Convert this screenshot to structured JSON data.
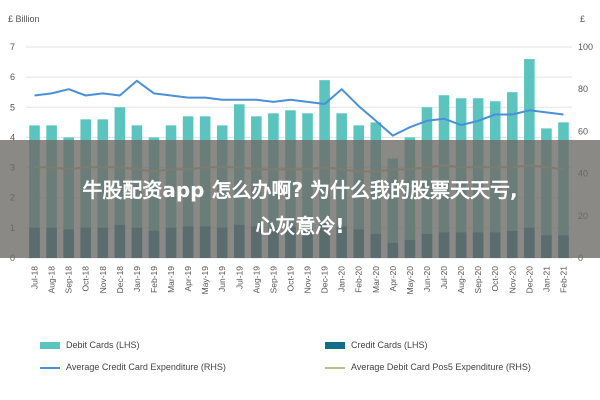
{
  "chart_data": {
    "type": "bar",
    "units_left": "£ Billion",
    "units_right": "£",
    "categories": [
      "Jul-18",
      "Aug-18",
      "Sep-18",
      "Oct-18",
      "Nov-18",
      "Dec-18",
      "Jan-19",
      "Feb-19",
      "Mar-19",
      "Apr-19",
      "May-19",
      "Jun-19",
      "Jul-19",
      "Aug-19",
      "Sep-19",
      "Oct-19",
      "Nov-19",
      "Dec-19",
      "Jan-20",
      "Feb-20",
      "Mar-20",
      "Apr-20",
      "May-20",
      "Jun-20",
      "Jul-20",
      "Aug-20",
      "Sep-20",
      "Oct-20",
      "Nov-20",
      "Dec-20",
      "Jan-21",
      "Feb-21"
    ],
    "ylim_left": [
      0,
      7
    ],
    "yticks_left": [
      "0",
      "1",
      "2",
      "3",
      "4",
      "5",
      "6",
      "7"
    ],
    "ylim_right": [
      0,
      100
    ],
    "yticks_right": [
      "0",
      "20",
      "40",
      "60",
      "80",
      "100"
    ],
    "series": [
      {
        "name": "Debit Cards (LHS)",
        "kind": "bar",
        "axis": "left",
        "color": "#5bc4bf",
        "values": [
          4.4,
          4.4,
          4.0,
          4.6,
          4.6,
          5.0,
          4.4,
          4.0,
          4.4,
          4.7,
          4.7,
          4.4,
          5.1,
          4.7,
          4.8,
          4.9,
          4.8,
          5.9,
          4.8,
          4.4,
          4.5,
          3.3,
          4.0,
          5.0,
          5.4,
          5.3,
          5.3,
          5.2,
          5.5,
          6.6,
          4.3,
          4.5
        ]
      },
      {
        "name": "Credit Cards (LHS)",
        "kind": "bar",
        "axis": "left",
        "color": "#0f6d8c",
        "values": [
          1.0,
          1.0,
          0.95,
          1.0,
          1.0,
          1.1,
          1.0,
          0.9,
          1.0,
          1.05,
          1.05,
          1.0,
          1.1,
          1.05,
          1.0,
          1.05,
          1.05,
          1.15,
          1.05,
          0.95,
          0.8,
          0.5,
          0.6,
          0.8,
          0.85,
          0.85,
          0.85,
          0.85,
          0.9,
          1.0,
          0.75,
          0.75
        ]
      },
      {
        "name": "Average Credit Card Expenditure (RHS)",
        "kind": "line",
        "axis": "right",
        "color": "#4a90d9",
        "values": [
          77,
          78,
          80,
          77,
          78,
          77,
          84,
          78,
          77,
          76,
          76,
          75,
          75,
          75,
          74,
          75,
          74,
          73,
          80,
          72,
          65,
          58,
          62,
          65,
          66,
          63,
          65,
          68,
          68,
          70,
          69,
          68
        ]
      },
      {
        "name": "Average Debit Card Pos5 Expenditure (RHS)",
        "kind": "line",
        "axis": "right",
        "color": "#c8b98a",
        "values": [
          43,
          43,
          42,
          43,
          43,
          43,
          42,
          41,
          42,
          42,
          43,
          43,
          43,
          42,
          42,
          42,
          42,
          43,
          42,
          41,
          41,
          42,
          42,
          43,
          44,
          43,
          43,
          43,
          43,
          44,
          43,
          42
        ]
      }
    ]
  },
  "overlay": {
    "line1": "牛股配资app 怎么办啊? 为什么我的股票天天亏,",
    "line2": "心灰意冷!"
  }
}
